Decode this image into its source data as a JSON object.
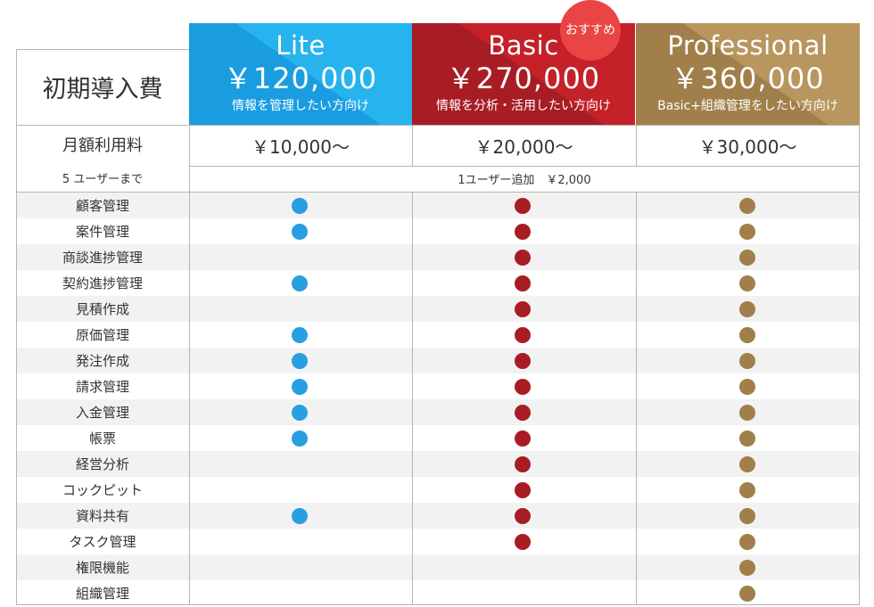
{
  "initial_fee_label": "初期導入費",
  "monthly_fee_label": "月額利用料",
  "users_note": "5 ユーザーまで",
  "add_user_note": "1ユーザー追加　￥2,000",
  "recommend_badge": "おすすめ",
  "plans": [
    {
      "name": "Lite",
      "price": "￥120,000",
      "desc": "情報を管理したい方向け",
      "monthly": "￥10,000～",
      "color": "#289fe0"
    },
    {
      "name": "Basic",
      "price": "￥270,000",
      "desc": "情報を分析・活用したい方向け",
      "monthly": "￥20,000～",
      "color": "#a81d24"
    },
    {
      "name": "Professional",
      "price": "￥360,000",
      "desc": "Basic+組織管理をしたい方向け",
      "monthly": "￥30,000～",
      "color": "#a07f4a"
    }
  ],
  "features": [
    {
      "name": "顧客管理",
      "lite": true,
      "basic": true,
      "pro": true
    },
    {
      "name": "案件管理",
      "lite": true,
      "basic": true,
      "pro": true
    },
    {
      "name": "商談進捗管理",
      "lite": false,
      "basic": true,
      "pro": true
    },
    {
      "name": "契約進捗管理",
      "lite": true,
      "basic": true,
      "pro": true
    },
    {
      "name": "見積作成",
      "lite": false,
      "basic": true,
      "pro": true
    },
    {
      "name": "原価管理",
      "lite": true,
      "basic": true,
      "pro": true
    },
    {
      "name": "発注作成",
      "lite": true,
      "basic": true,
      "pro": true
    },
    {
      "name": "請求管理",
      "lite": true,
      "basic": true,
      "pro": true
    },
    {
      "name": "入金管理",
      "lite": true,
      "basic": true,
      "pro": true
    },
    {
      "name": "帳票",
      "lite": true,
      "basic": true,
      "pro": true
    },
    {
      "name": "経営分析",
      "lite": false,
      "basic": true,
      "pro": true
    },
    {
      "name": "コックピット",
      "lite": false,
      "basic": true,
      "pro": true
    },
    {
      "name": "資料共有",
      "lite": true,
      "basic": true,
      "pro": true
    },
    {
      "name": "タスク管理",
      "lite": false,
      "basic": true,
      "pro": true
    },
    {
      "name": "権限機能",
      "lite": false,
      "basic": false,
      "pro": true
    },
    {
      "name": "組織管理",
      "lite": false,
      "basic": false,
      "pro": true
    }
  ]
}
